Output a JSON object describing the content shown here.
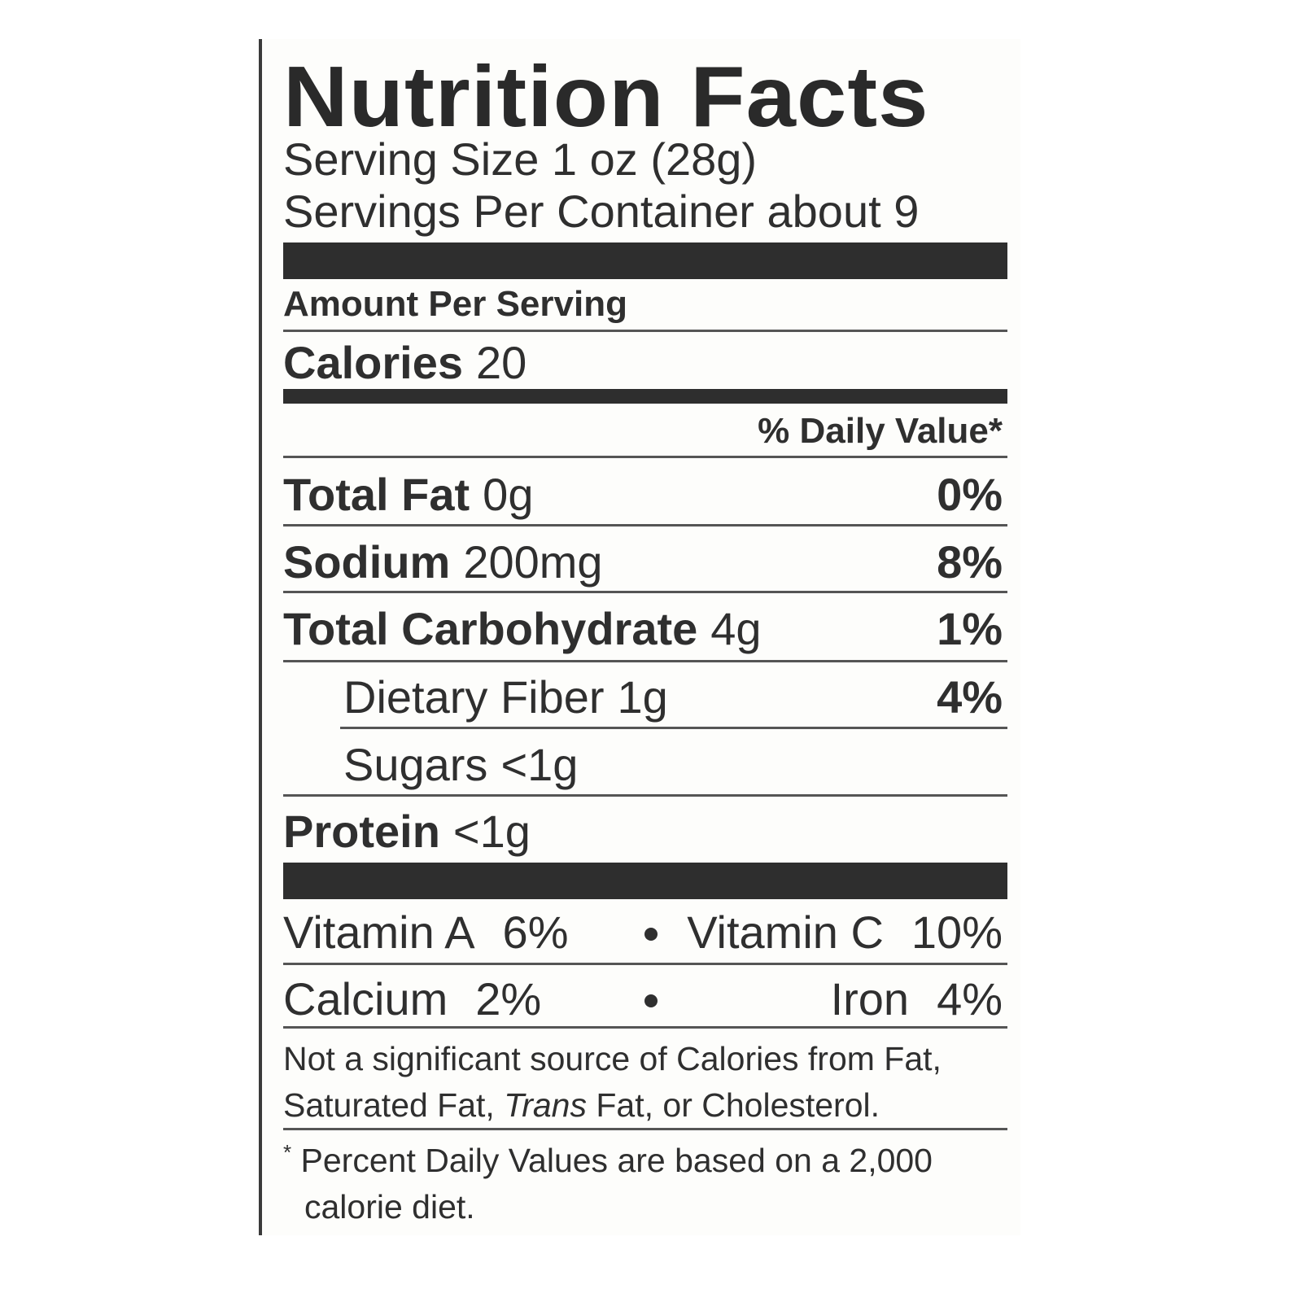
{
  "title": "Nutrition Facts",
  "serving_size": "Serving Size 1 oz (28g)",
  "servings_per_container": "Servings Per Container about 9",
  "amount_per_serving": "Amount Per Serving",
  "calories": {
    "label": "Calories",
    "value": "20"
  },
  "daily_value_header": "% Daily Value*",
  "nutrients": [
    {
      "label": "Total Fat",
      "amount": "0g",
      "dv": "0%"
    },
    {
      "label": "Sodium",
      "amount": "200mg",
      "dv": "8%"
    },
    {
      "label": "Total Carbohydrate",
      "amount": "4g",
      "dv": "1%"
    },
    {
      "label": "Dietary Fiber",
      "amount": "1g",
      "dv": "4%"
    },
    {
      "label": "Sugars",
      "amount": "<1g",
      "dv": ""
    },
    {
      "label": "Protein",
      "amount": "<1g",
      "dv": ""
    }
  ],
  "vitamins": [
    {
      "label": "Vitamin A",
      "dv": "6%"
    },
    {
      "label": "Vitamin C",
      "dv": "10%"
    },
    {
      "label": "Calcium",
      "dv": "2%"
    },
    {
      "label": "Iron",
      "dv": "4%"
    }
  ],
  "footnote_not_significant_1": "Not a significant source of Calories from Fat,",
  "footnote_not_significant_2a": "Saturated Fat, ",
  "footnote_not_significant_2b": "Trans",
  "footnote_not_significant_2c": " Fat, or Cholesterol.",
  "footnote_asterisk": "*",
  "footnote_dv_1": "Percent Daily Values are based on a 2,000",
  "footnote_dv_2": "calorie diet."
}
